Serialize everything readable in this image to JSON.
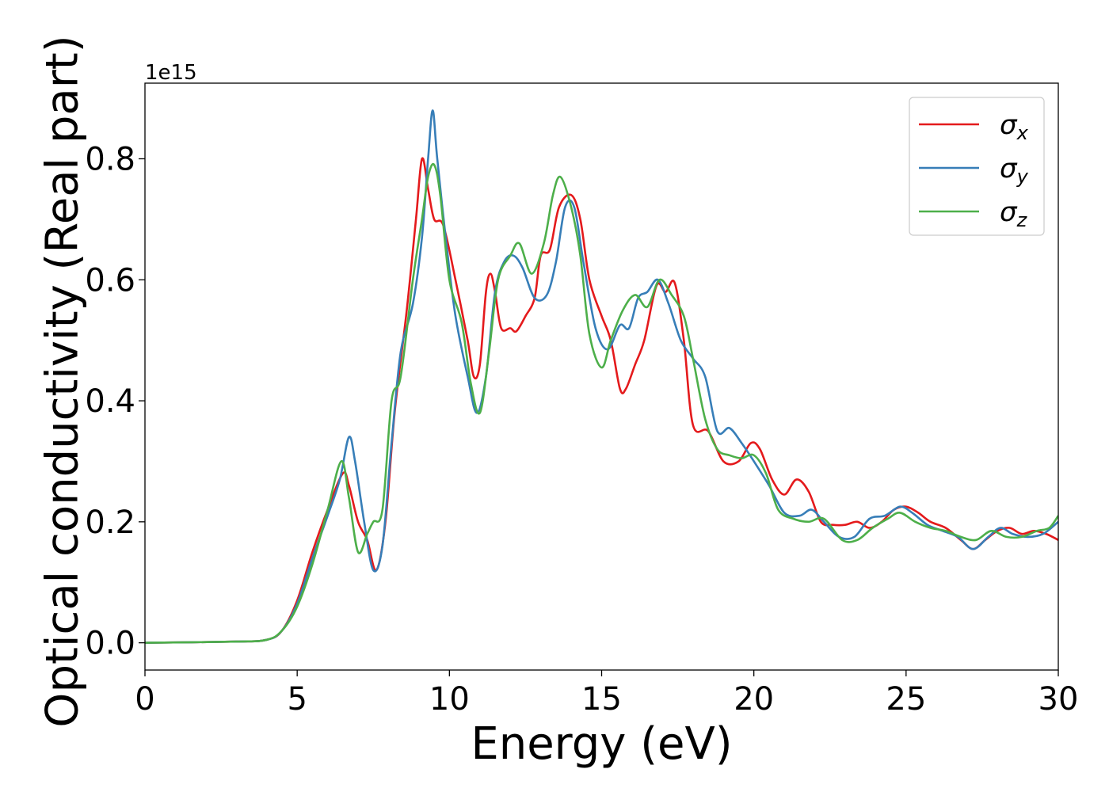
{
  "chart_data": {
    "type": "line",
    "title": "",
    "xlabel": "Energy (eV)",
    "ylabel": "Optical conductivity (Real part)",
    "y_offset_label": "1e15",
    "xlim": [
      0,
      30
    ],
    "ylim": [
      -0.045,
      0.925
    ],
    "x_ticks": [
      0,
      5,
      10,
      15,
      20,
      25,
      30
    ],
    "y_ticks": [
      0.0,
      0.2,
      0.4,
      0.6,
      0.8
    ],
    "x_tick_labels": [
      "0",
      "5",
      "10",
      "15",
      "20",
      "25",
      "30"
    ],
    "y_tick_labels": [
      "0.0",
      "0.2",
      "0.4",
      "0.6",
      "0.8"
    ],
    "grid": false,
    "legend_position": "top-right",
    "series": [
      {
        "name": "σx",
        "symbol": "σ",
        "subscript": "x",
        "color": "#e41a1c",
        "points": [
          [
            0,
            0
          ],
          [
            3,
            0.002
          ],
          [
            4,
            0.005
          ],
          [
            4.5,
            0.02
          ],
          [
            5,
            0.07
          ],
          [
            5.5,
            0.15
          ],
          [
            6,
            0.22
          ],
          [
            6.5,
            0.28
          ],
          [
            6.7,
            0.26
          ],
          [
            7,
            0.2
          ],
          [
            7.3,
            0.17
          ],
          [
            7.6,
            0.12
          ],
          [
            7.9,
            0.2
          ],
          [
            8.2,
            0.38
          ],
          [
            8.6,
            0.55
          ],
          [
            8.9,
            0.7
          ],
          [
            9.1,
            0.8
          ],
          [
            9.3,
            0.75
          ],
          [
            9.5,
            0.7
          ],
          [
            9.8,
            0.69
          ],
          [
            10.2,
            0.6
          ],
          [
            10.6,
            0.5
          ],
          [
            10.8,
            0.44
          ],
          [
            11,
            0.46
          ],
          [
            11.2,
            0.58
          ],
          [
            11.35,
            0.61
          ],
          [
            11.5,
            0.58
          ],
          [
            11.7,
            0.52
          ],
          [
            12,
            0.52
          ],
          [
            12.2,
            0.515
          ],
          [
            12.5,
            0.54
          ],
          [
            12.8,
            0.57
          ],
          [
            13,
            0.64
          ],
          [
            13.3,
            0.65
          ],
          [
            13.6,
            0.72
          ],
          [
            14,
            0.74
          ],
          [
            14.3,
            0.7
          ],
          [
            14.6,
            0.6
          ],
          [
            15,
            0.54
          ],
          [
            15.3,
            0.5
          ],
          [
            15.6,
            0.42
          ],
          [
            15.8,
            0.42
          ],
          [
            16.1,
            0.46
          ],
          [
            16.4,
            0.5
          ],
          [
            16.8,
            0.59
          ],
          [
            17.1,
            0.58
          ],
          [
            17.4,
            0.595
          ],
          [
            17.7,
            0.5
          ],
          [
            18,
            0.36
          ],
          [
            18.5,
            0.35
          ],
          [
            19,
            0.3
          ],
          [
            19.5,
            0.3
          ],
          [
            19.9,
            0.33
          ],
          [
            20.2,
            0.32
          ],
          [
            20.6,
            0.27
          ],
          [
            21,
            0.245
          ],
          [
            21.4,
            0.27
          ],
          [
            21.8,
            0.25
          ],
          [
            22.2,
            0.2
          ],
          [
            22.6,
            0.195
          ],
          [
            23,
            0.195
          ],
          [
            23.4,
            0.2
          ],
          [
            23.8,
            0.19
          ],
          [
            24.2,
            0.2
          ],
          [
            24.6,
            0.22
          ],
          [
            25,
            0.225
          ],
          [
            25.4,
            0.215
          ],
          [
            25.8,
            0.2
          ],
          [
            26.3,
            0.19
          ],
          [
            26.8,
            0.17
          ],
          [
            27.2,
            0.155
          ],
          [
            27.6,
            0.17
          ],
          [
            28,
            0.185
          ],
          [
            28.4,
            0.19
          ],
          [
            28.8,
            0.18
          ],
          [
            29.2,
            0.185
          ],
          [
            29.6,
            0.18
          ],
          [
            30,
            0.17
          ]
        ]
      },
      {
        "name": "σy",
        "symbol": "σ",
        "subscript": "y",
        "color": "#377eb8",
        "points": [
          [
            0,
            0
          ],
          [
            3,
            0.002
          ],
          [
            4,
            0.005
          ],
          [
            4.5,
            0.02
          ],
          [
            5,
            0.065
          ],
          [
            5.5,
            0.14
          ],
          [
            6,
            0.21
          ],
          [
            6.4,
            0.27
          ],
          [
            6.7,
            0.34
          ],
          [
            6.9,
            0.3
          ],
          [
            7.2,
            0.2
          ],
          [
            7.5,
            0.12
          ],
          [
            7.8,
            0.16
          ],
          [
            8.1,
            0.33
          ],
          [
            8.4,
            0.48
          ],
          [
            8.8,
            0.56
          ],
          [
            9.1,
            0.67
          ],
          [
            9.3,
            0.8
          ],
          [
            9.45,
            0.88
          ],
          [
            9.6,
            0.8
          ],
          [
            9.9,
            0.66
          ],
          [
            10.2,
            0.54
          ],
          [
            10.6,
            0.44
          ],
          [
            10.9,
            0.38
          ],
          [
            11.2,
            0.44
          ],
          [
            11.5,
            0.58
          ],
          [
            11.8,
            0.63
          ],
          [
            12.1,
            0.64
          ],
          [
            12.4,
            0.62
          ],
          [
            12.8,
            0.57
          ],
          [
            13.2,
            0.575
          ],
          [
            13.5,
            0.63
          ],
          [
            13.8,
            0.72
          ],
          [
            14.1,
            0.72
          ],
          [
            14.4,
            0.63
          ],
          [
            14.8,
            0.52
          ],
          [
            15.2,
            0.485
          ],
          [
            15.6,
            0.525
          ],
          [
            15.9,
            0.52
          ],
          [
            16.2,
            0.57
          ],
          [
            16.5,
            0.58
          ],
          [
            16.85,
            0.6
          ],
          [
            17.2,
            0.56
          ],
          [
            17.6,
            0.5
          ],
          [
            18,
            0.47
          ],
          [
            18.4,
            0.44
          ],
          [
            18.8,
            0.35
          ],
          [
            19.2,
            0.355
          ],
          [
            19.6,
            0.33
          ],
          [
            20,
            0.3
          ],
          [
            20.5,
            0.26
          ],
          [
            21,
            0.215
          ],
          [
            21.5,
            0.21
          ],
          [
            21.9,
            0.22
          ],
          [
            22.3,
            0.2
          ],
          [
            22.8,
            0.175
          ],
          [
            23.3,
            0.175
          ],
          [
            23.8,
            0.205
          ],
          [
            24.3,
            0.21
          ],
          [
            24.8,
            0.225
          ],
          [
            25.2,
            0.215
          ],
          [
            25.7,
            0.195
          ],
          [
            26.2,
            0.185
          ],
          [
            26.7,
            0.175
          ],
          [
            27.2,
            0.155
          ],
          [
            27.7,
            0.175
          ],
          [
            28.1,
            0.19
          ],
          [
            28.5,
            0.18
          ],
          [
            29,
            0.175
          ],
          [
            29.5,
            0.18
          ],
          [
            30,
            0.2
          ]
        ]
      },
      {
        "name": "σz",
        "symbol": "σ",
        "subscript": "z",
        "color": "#4daf4a",
        "points": [
          [
            0,
            0
          ],
          [
            3,
            0.002
          ],
          [
            4,
            0.005
          ],
          [
            4.5,
            0.02
          ],
          [
            5,
            0.06
          ],
          [
            5.5,
            0.13
          ],
          [
            6,
            0.22
          ],
          [
            6.45,
            0.3
          ],
          [
            6.7,
            0.24
          ],
          [
            7,
            0.15
          ],
          [
            7.3,
            0.18
          ],
          [
            7.5,
            0.2
          ],
          [
            7.8,
            0.22
          ],
          [
            8.1,
            0.4
          ],
          [
            8.4,
            0.44
          ],
          [
            8.8,
            0.6
          ],
          [
            9.1,
            0.7
          ],
          [
            9.3,
            0.77
          ],
          [
            9.5,
            0.79
          ],
          [
            9.7,
            0.74
          ],
          [
            10,
            0.6
          ],
          [
            10.4,
            0.53
          ],
          [
            10.7,
            0.43
          ],
          [
            11,
            0.38
          ],
          [
            11.3,
            0.48
          ],
          [
            11.6,
            0.6
          ],
          [
            12,
            0.64
          ],
          [
            12.3,
            0.66
          ],
          [
            12.7,
            0.61
          ],
          [
            13.1,
            0.66
          ],
          [
            13.4,
            0.74
          ],
          [
            13.65,
            0.77
          ],
          [
            14,
            0.72
          ],
          [
            14.3,
            0.64
          ],
          [
            14.6,
            0.51
          ],
          [
            15,
            0.455
          ],
          [
            15.3,
            0.5
          ],
          [
            15.7,
            0.55
          ],
          [
            16.1,
            0.575
          ],
          [
            16.5,
            0.555
          ],
          [
            16.9,
            0.6
          ],
          [
            17.3,
            0.575
          ],
          [
            17.7,
            0.54
          ],
          [
            18,
            0.47
          ],
          [
            18.4,
            0.37
          ],
          [
            18.8,
            0.32
          ],
          [
            19.2,
            0.31
          ],
          [
            19.6,
            0.305
          ],
          [
            20,
            0.31
          ],
          [
            20.4,
            0.28
          ],
          [
            20.8,
            0.22
          ],
          [
            21.3,
            0.205
          ],
          [
            21.8,
            0.2
          ],
          [
            22.3,
            0.205
          ],
          [
            22.9,
            0.17
          ],
          [
            23.4,
            0.17
          ],
          [
            23.9,
            0.19
          ],
          [
            24.4,
            0.205
          ],
          [
            24.8,
            0.215
          ],
          [
            25.3,
            0.2
          ],
          [
            25.8,
            0.19
          ],
          [
            26.3,
            0.185
          ],
          [
            26.8,
            0.175
          ],
          [
            27.3,
            0.17
          ],
          [
            27.8,
            0.185
          ],
          [
            28.3,
            0.175
          ],
          [
            28.8,
            0.175
          ],
          [
            29.3,
            0.185
          ],
          [
            29.7,
            0.19
          ],
          [
            30,
            0.21
          ]
        ]
      }
    ]
  }
}
